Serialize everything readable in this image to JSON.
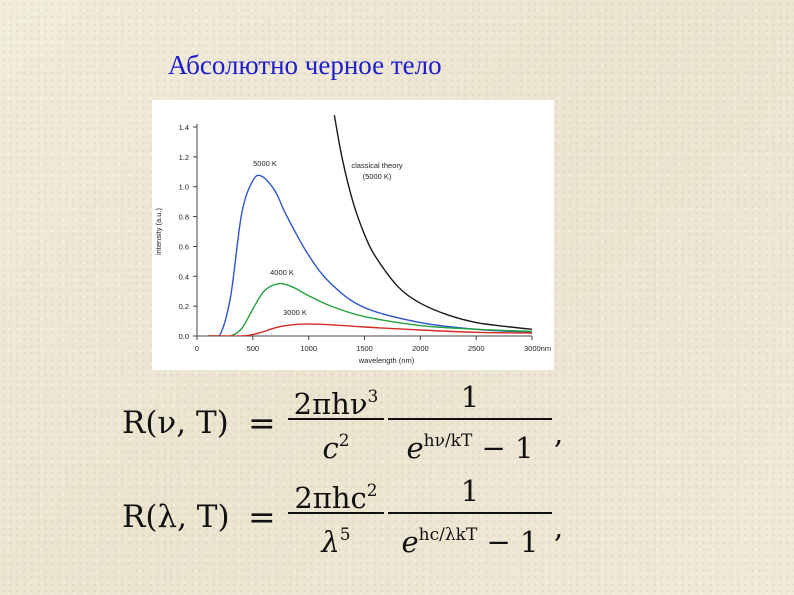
{
  "slide": {
    "title": "Абсолютно черное тело"
  },
  "chart_data": {
    "type": "line",
    "title": "",
    "xlabel": "wavelength (nm)",
    "ylabel": "intensity (a.u.)",
    "xlim": [
      0,
      3000
    ],
    "ylim": [
      0,
      1.4
    ],
    "x_ticks": [
      "0",
      "500",
      "1000",
      "1500",
      "2000",
      "2500",
      "3000nm"
    ],
    "y_ticks": [
      "0.0",
      "0.2",
      "0.4",
      "0.6",
      "0.8",
      "1.0",
      "1.2",
      "1.4"
    ],
    "grid": false,
    "legend": "none",
    "annotations": [
      {
        "text": "5000 K"
      },
      {
        "text": "4000 K"
      },
      {
        "text": "3000 K"
      },
      {
        "text": "classical theory"
      },
      {
        "text": "(5000 K)"
      }
    ],
    "series": [
      {
        "color": "#2a56c8",
        "x": [
          200,
          300,
          400,
          500,
          580,
          700,
          800,
          1000,
          1200,
          1500,
          2000,
          2500,
          3000
        ],
        "y": [
          0.0,
          0.26,
          0.82,
          1.04,
          1.07,
          0.97,
          0.81,
          0.54,
          0.35,
          0.19,
          0.09,
          0.045,
          0.025
        ]
      },
      {
        "color": "#22a13c",
        "x": [
          200,
          300,
          400,
          500,
          600,
          725,
          850,
          1000,
          1200,
          1500,
          2000,
          2500,
          3000
        ],
        "y": [
          0.0,
          0.0,
          0.05,
          0.18,
          0.3,
          0.35,
          0.33,
          0.27,
          0.2,
          0.13,
          0.07,
          0.045,
          0.03
        ]
      },
      {
        "color": "#d42a22",
        "x": [
          300,
          400,
          500,
          600,
          700,
          800,
          966,
          1200,
          1500,
          2000,
          2500,
          3000
        ],
        "y": [
          0.0,
          0.0,
          0.01,
          0.03,
          0.055,
          0.07,
          0.08,
          0.075,
          0.06,
          0.04,
          0.025,
          0.02
        ]
      },
      {
        "color": "#1a1a1a",
        "x": [
          1230,
          1300,
          1400,
          1500,
          1600,
          1800,
          2000,
          2250,
          2500,
          2750,
          3000
        ],
        "y": [
          1.48,
          1.19,
          0.89,
          0.68,
          0.53,
          0.33,
          0.22,
          0.14,
          0.09,
          0.065,
          0.045
        ]
      }
    ]
  },
  "formulas": {
    "nu": {
      "lhs": "R(ν, T)",
      "eq": "=",
      "num1": "2πhν",
      "num1_exp": "3",
      "den1": "c",
      "den1_exp": "2",
      "num2": "1",
      "den2": "e",
      "den2_exp": "hν/kT",
      "den2_tail": " − 1",
      "comma": ","
    },
    "lambda": {
      "lhs": "R(λ, T)",
      "eq": "=",
      "num1": "2πhc",
      "num1_exp": "2",
      "den1": "λ",
      "den1_exp": "5",
      "num2": "1",
      "den2": "e",
      "den2_exp": "hc/λkT",
      "den2_tail": " − 1",
      "comma": ","
    }
  }
}
